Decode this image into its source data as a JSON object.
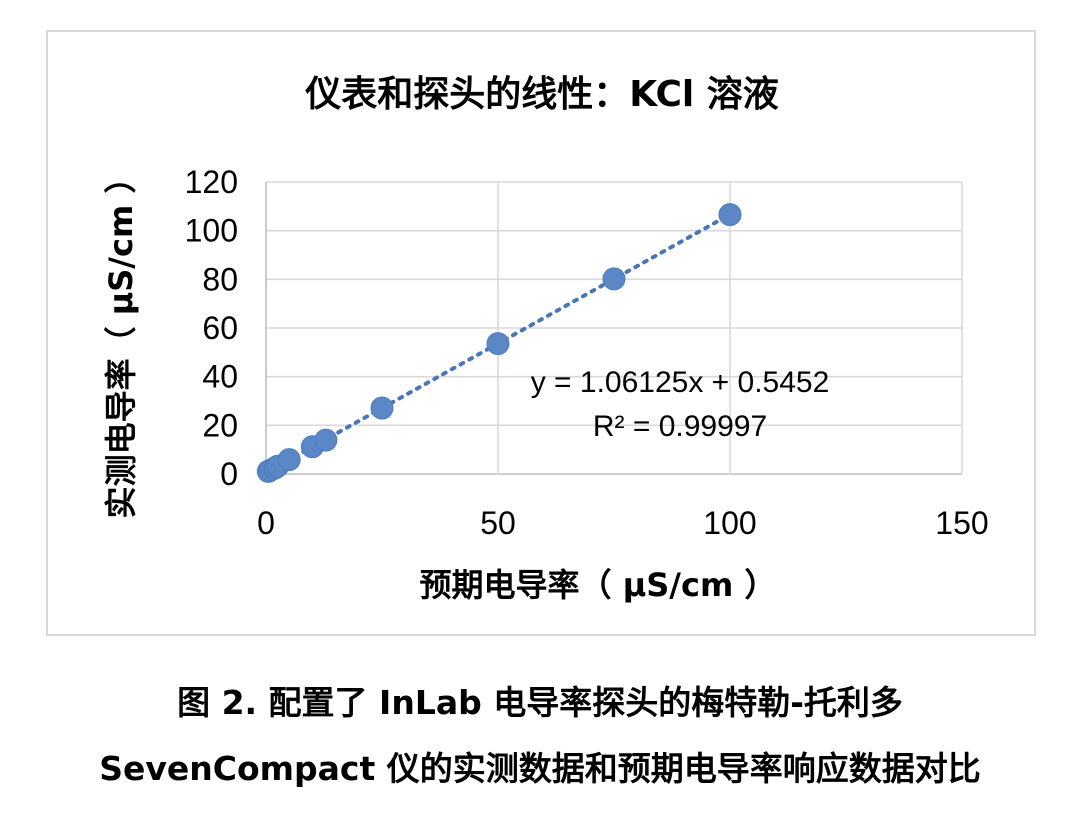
{
  "chart_data": {
    "type": "scatter",
    "title": "仪表和探头的线性：KCl 溶液",
    "xlabel": "预期电导率（ μS/cm ）",
    "ylabel": "实测电导率（ μS/cm ）",
    "xlim": [
      0,
      150
    ],
    "ylim": [
      0,
      120
    ],
    "xticks": [
      0,
      50,
      100,
      150
    ],
    "yticks": [
      0,
      20,
      40,
      60,
      80,
      100,
      120
    ],
    "grid": true,
    "legend": "none",
    "series": [
      {
        "x": [
          0.5,
          1,
          2,
          2.5,
          5,
          10,
          12.9,
          25,
          50,
          75,
          100
        ],
        "y": [
          1.1,
          1.6,
          2.5,
          3.2,
          5.9,
          11.2,
          13.9,
          27.1,
          53.6,
          80.2,
          106.6
        ]
      }
    ],
    "trendline": {
      "slope": 1.06125,
      "intercept": 0.5452,
      "style": "dotted",
      "equation": "y = 1.06125x + 0.5452",
      "r2": "R² = 0.99997"
    },
    "colors": {
      "marker": "#5b87c7",
      "trendline": "#4a76b8",
      "grid": "#d9d9d9",
      "frame": "#d9d9d9"
    }
  },
  "caption": {
    "line1": "图 2. 配置了 InLab 电导率探头的梅特勒-托利多",
    "line2": "SevenCompact 仪的实测数据和预期电导率响应数据对比"
  }
}
